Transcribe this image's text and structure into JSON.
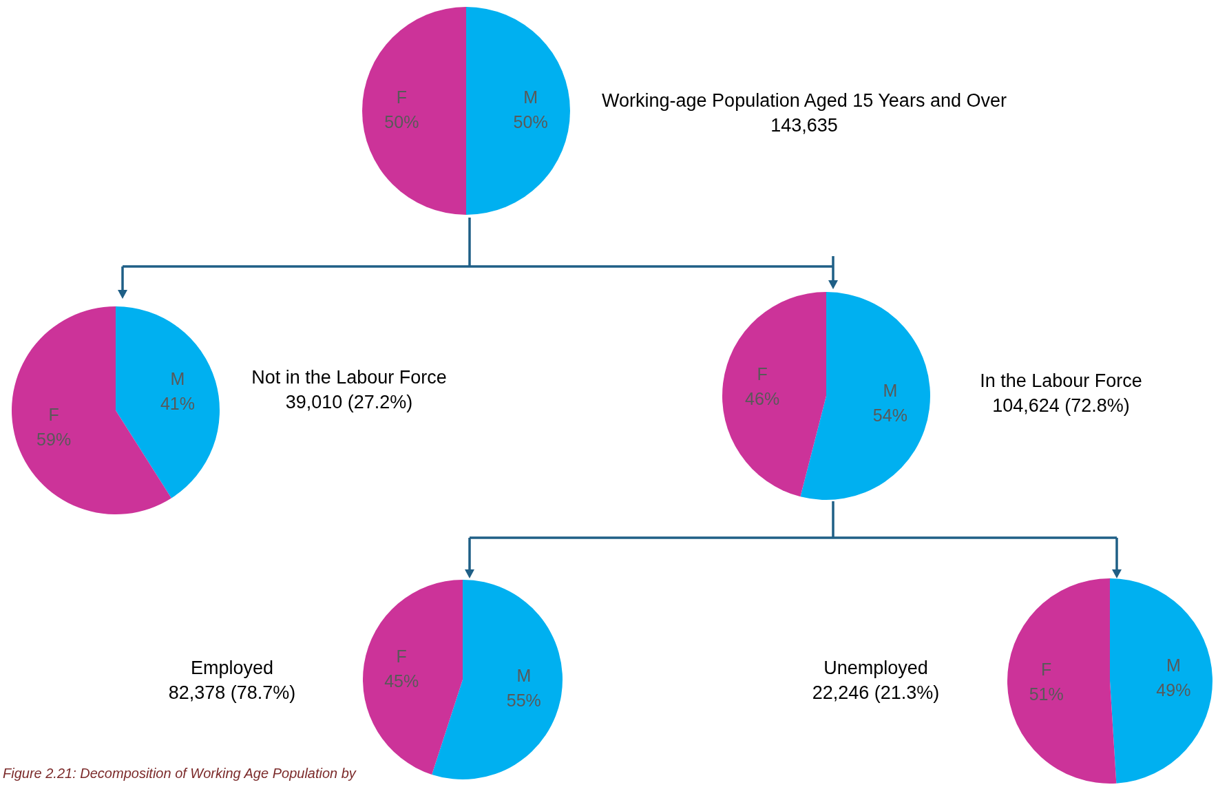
{
  "chart_data": [
    {
      "type": "pie",
      "title": "Working-age Population Aged 15 Years and Over",
      "subtitle": "143,635",
      "categories": [
        "M",
        "F"
      ],
      "values": [
        50,
        50
      ],
      "colors": [
        "#00b0f0",
        "#cc3399"
      ],
      "value_labels": [
        "50%",
        "50%"
      ],
      "legend": false,
      "annotations": [
        "Figure 2.21: Decomposition of Working Age Population by"
      ]
    },
    {
      "type": "pie",
      "title": "Not in the Labour Force",
      "subtitle": "39,010 (27.2%)",
      "categories": [
        "M",
        "F"
      ],
      "values": [
        41,
        59
      ],
      "colors": [
        "#00b0f0",
        "#cc3399"
      ],
      "value_labels": [
        "41%",
        "59%"
      ],
      "legend": false
    },
    {
      "type": "pie",
      "title": "In the Labour Force",
      "subtitle": "104,624 (72.8%)",
      "categories": [
        "M",
        "F"
      ],
      "values": [
        54,
        46
      ],
      "colors": [
        "#00b0f0",
        "#cc3399"
      ],
      "value_labels": [
        "54%",
        "46%"
      ],
      "legend": false
    },
    {
      "type": "pie",
      "title": "Employed",
      "subtitle": "82,378 (78.7%)",
      "categories": [
        "M",
        "F"
      ],
      "values": [
        55,
        45
      ],
      "colors": [
        "#00b0f0",
        "#cc3399"
      ],
      "value_labels": [
        "55%",
        "45%"
      ],
      "legend": false
    },
    {
      "type": "pie",
      "title": "Unemployed",
      "subtitle": "22,246 (21.3%)",
      "categories": [
        "M",
        "F"
      ],
      "values": [
        49,
        51
      ],
      "colors": [
        "#00b0f0",
        "#cc3399"
      ],
      "value_labels": [
        "49%",
        "51%"
      ],
      "legend": false
    }
  ]
}
